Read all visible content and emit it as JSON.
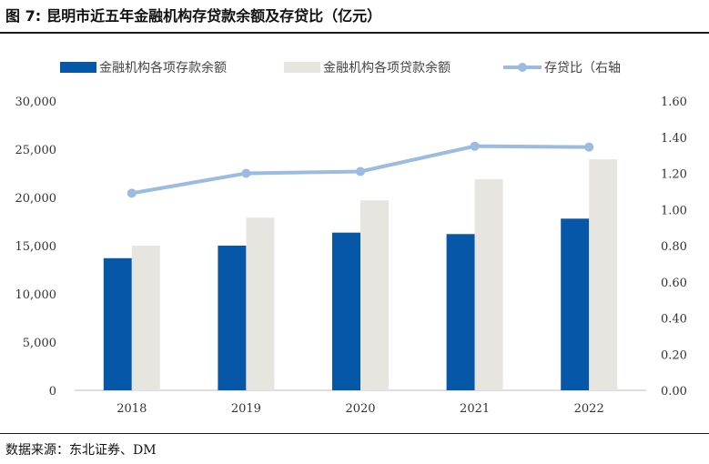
{
  "figure": {
    "number": "图 7:",
    "title": "昆明市近五年金融机构存贷款余额及存贷比（亿元）"
  },
  "source": "数据来源：东北证券、DM",
  "colors": {
    "deposit": "#0657a8",
    "loan": "#e7e5e0",
    "ratio": "#9bbbe0"
  },
  "chart_data": {
    "type": "bar",
    "categories": [
      "2018",
      "2019",
      "2020",
      "2021",
      "2022"
    ],
    "series": [
      {
        "name": "金融机构各项存款余额",
        "type": "bar",
        "axis": "left",
        "values": [
          13700,
          15000,
          16350,
          16200,
          17800
        ]
      },
      {
        "name": "金融机构各项贷款余额",
        "type": "bar",
        "axis": "left",
        "values": [
          15000,
          17900,
          19700,
          21900,
          23950
        ]
      },
      {
        "name": "存贷比（右轴",
        "type": "line",
        "axis": "right",
        "values": [
          1.09,
          1.2,
          1.21,
          1.35,
          1.345
        ]
      }
    ],
    "y_left": {
      "min": 0,
      "max": 30000,
      "ticks": [
        "0",
        "5,000",
        "10,000",
        "15,000",
        "20,000",
        "25,000",
        "30,000"
      ]
    },
    "y_right": {
      "min": 0,
      "max": 1.6,
      "ticks": [
        "0.00",
        "0.20",
        "0.40",
        "0.60",
        "0.80",
        "1.00",
        "1.20",
        "1.40",
        "1.60"
      ]
    },
    "legend_position": "top",
    "grid": false
  }
}
